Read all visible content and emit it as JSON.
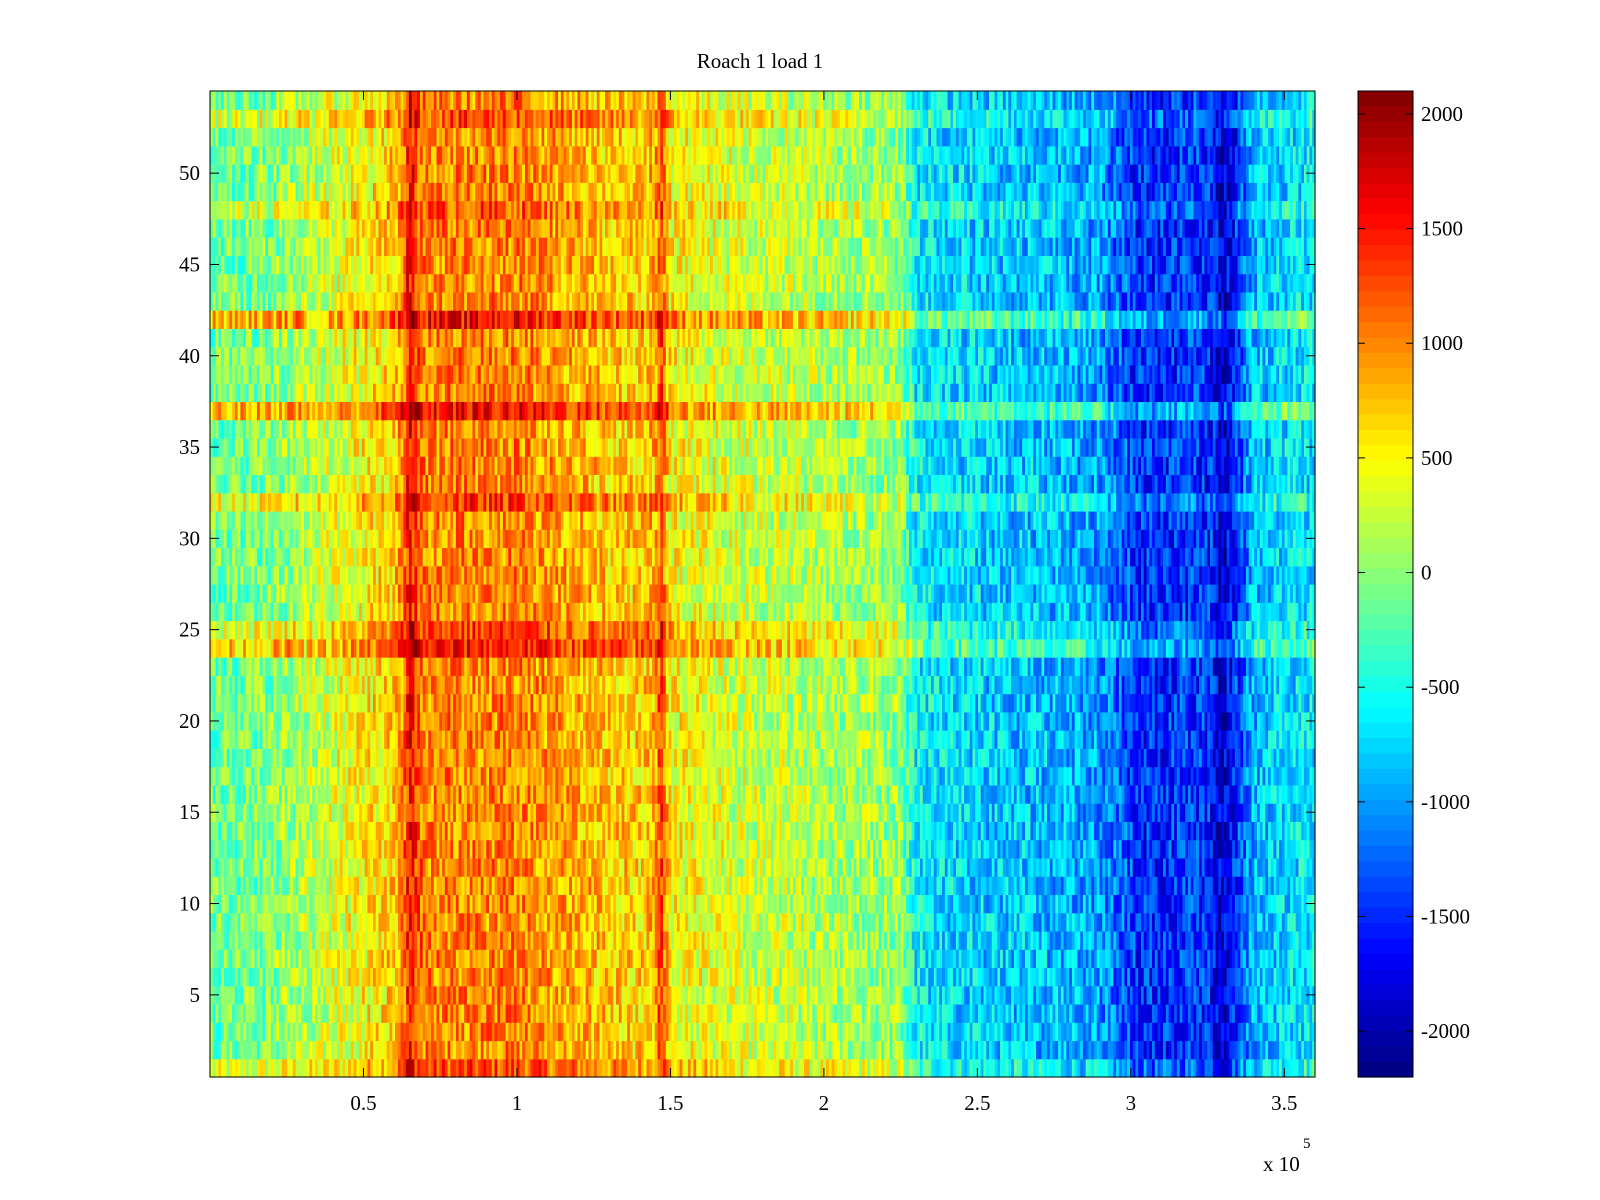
{
  "chart_data": {
    "type": "heatmap",
    "title": "Roach 1 load 1",
    "xlabel": "",
    "ylabel": "",
    "x_multiplier_label": "x 10",
    "x_multiplier_exponent": "5",
    "xlim": [
      0,
      360000
    ],
    "ylim": [
      0.5,
      54.5
    ],
    "xticks": [
      50000,
      100000,
      150000,
      200000,
      250000,
      300000,
      350000
    ],
    "xtick_labels": [
      "0.5",
      "1",
      "1.5",
      "2",
      "2.5",
      "3",
      "3.5"
    ],
    "yticks": [
      5,
      10,
      15,
      20,
      25,
      30,
      35,
      40,
      45,
      50
    ],
    "ytick_labels": [
      "5",
      "10",
      "15",
      "20",
      "25",
      "30",
      "35",
      "40",
      "45",
      "50"
    ],
    "rows": 54,
    "colormap": "jet",
    "clim": [
      -2200,
      2100
    ],
    "colorbar": {
      "ticks": [
        2000,
        1500,
        1000,
        500,
        0,
        -500,
        -1000,
        -1500,
        -2000
      ],
      "tick_labels": [
        "2000",
        "1500",
        "1000",
        "500",
        "0",
        "-500",
        "-1000",
        "-1500",
        "-2000"
      ]
    },
    "column_profile": {
      "x": [
        0,
        10000,
        20000,
        30000,
        40000,
        50000,
        60000,
        63000,
        65000,
        67000,
        70000,
        80000,
        90000,
        100000,
        110000,
        120000,
        130000,
        140000,
        145000,
        147000,
        150000,
        160000,
        170000,
        180000,
        190000,
        200000,
        210000,
        220000,
        225000,
        230000,
        240000,
        250000,
        260000,
        270000,
        280000,
        290000,
        298000,
        302000,
        310000,
        320000,
        326000,
        330000,
        334000,
        340000,
        350000,
        360000
      ],
      "mean": [
        -150,
        -100,
        -50,
        150,
        300,
        500,
        700,
        1000,
        1600,
        1300,
        1000,
        1000,
        1000,
        1000,
        900,
        800,
        700,
        650,
        800,
        1300,
        500,
        400,
        300,
        250,
        200,
        150,
        100,
        50,
        0,
        -600,
        -700,
        -750,
        -800,
        -850,
        -900,
        -1000,
        -1300,
        -1500,
        -1500,
        -1400,
        -1500,
        -1900,
        -1500,
        -900,
        -700,
        -650
      ]
    },
    "row_offsets": [
      {
        "row": 1,
        "offset": 400
      },
      {
        "row": 24,
        "offset": 800
      },
      {
        "row": 25,
        "offset": 500
      },
      {
        "row": 32,
        "offset": 500
      },
      {
        "row": 37,
        "offset": 900
      },
      {
        "row": 42,
        "offset": 900
      },
      {
        "row": 48,
        "offset": 350
      },
      {
        "row": 53,
        "offset": 400
      }
    ]
  }
}
